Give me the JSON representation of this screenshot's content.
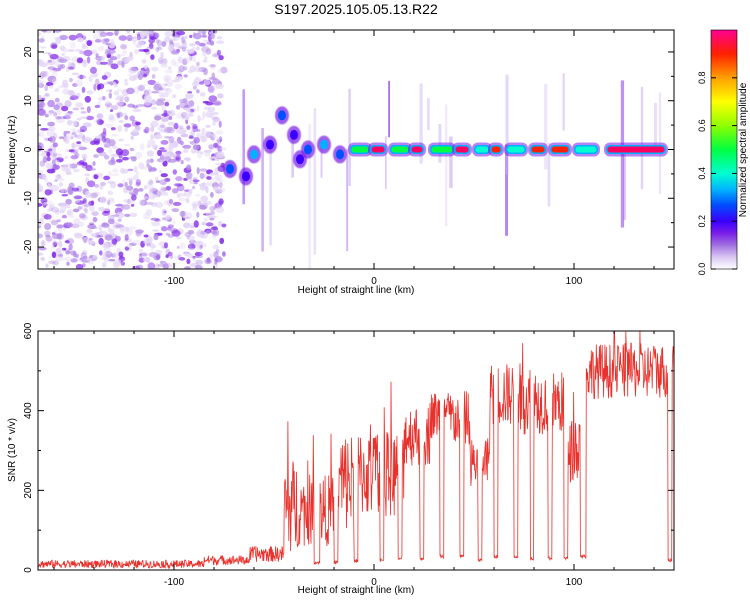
{
  "title": "S197.2025.105.05.13.R22",
  "colors": {
    "snr_line": "#e8312c",
    "axis": "#000000",
    "colormap": [
      "#ffffff",
      "#d9c6f2",
      "#a070e0",
      "#7a1ee8",
      "#3a00ff",
      "#0050ff",
      "#00b0ff",
      "#00ffd0",
      "#00ff40",
      "#90ff00",
      "#ffff00",
      "#ffa000",
      "#ff2000",
      "#ff0060",
      "#ff0090"
    ]
  },
  "chart_data": [
    {
      "type": "heatmap",
      "xlabel": "Height of straight line (km)",
      "ylabel": "Frequency (Hz)",
      "xlim": [
        -168,
        150
      ],
      "ylim": [
        -24.5,
        24.5
      ],
      "xticks": [
        -100,
        0,
        100
      ],
      "xtick_labels": [
        "-100",
        "0",
        "100"
      ],
      "yticks": [
        -20,
        -10,
        0,
        10,
        20
      ],
      "ytick_labels": [
        "-20",
        "-10",
        "0",
        "10",
        "20"
      ],
      "colorbar": {
        "label": "Normalized spectral amplitude",
        "range": [
          0,
          1
        ],
        "ticks": [
          0.0,
          0.2,
          0.4,
          0.6,
          0.8
        ],
        "tick_labels": [
          "0.0",
          "0.2",
          "0.4",
          "0.6",
          "0.8"
        ]
      },
      "features": {
        "noise_region_x": [
          -168,
          -75
        ],
        "carrier_frequency_hz": 0,
        "transition_blobs": [
          {
            "x": -72,
            "y": -4,
            "amp": 0.35
          },
          {
            "x": -64,
            "y": -5.5,
            "amp": 0.3
          },
          {
            "x": -60,
            "y": -1,
            "amp": 0.4
          },
          {
            "x": -52,
            "y": 1,
            "amp": 0.3
          },
          {
            "x": -46,
            "y": 7,
            "amp": 0.35
          },
          {
            "x": -40,
            "y": 3,
            "amp": 0.3
          },
          {
            "x": -37,
            "y": -2,
            "amp": 0.3
          },
          {
            "x": -33,
            "y": 0,
            "amp": 0.35
          },
          {
            "x": -25,
            "y": 1,
            "amp": 0.4
          },
          {
            "x": -17,
            "y": -1,
            "amp": 0.35
          }
        ],
        "carrier_segments": [
          {
            "x0": -12,
            "x1": -2,
            "amp": 0.55
          },
          {
            "x0": -2,
            "x1": 6,
            "amp": 0.9
          },
          {
            "x0": 8,
            "x1": 18,
            "amp": 0.55
          },
          {
            "x0": 18,
            "x1": 25,
            "amp": 0.9
          },
          {
            "x0": 28,
            "x1": 40,
            "amp": 0.55
          },
          {
            "x0": 40,
            "x1": 48,
            "amp": 0.9
          },
          {
            "x0": 50,
            "x1": 58,
            "amp": 0.5
          },
          {
            "x0": 58,
            "x1": 64,
            "amp": 0.85
          },
          {
            "x0": 66,
            "x1": 76,
            "amp": 0.5
          },
          {
            "x0": 78,
            "x1": 86,
            "amp": 0.85
          },
          {
            "x0": 88,
            "x1": 98,
            "amp": 0.85
          },
          {
            "x0": 100,
            "x1": 112,
            "amp": 0.5
          },
          {
            "x0": 116,
            "x1": 146,
            "amp": 0.95
          }
        ]
      }
    },
    {
      "type": "line",
      "xlabel": "Height of straight line (km)",
      "ylabel": "SNR (10 * v/v)",
      "xlim": [
        -168,
        150
      ],
      "ylim": [
        0,
        600
      ],
      "xticks": [
        -100,
        0,
        100
      ],
      "xtick_labels": [
        "-100",
        "0",
        "100"
      ],
      "yticks": [
        0,
        200,
        400,
        600
      ],
      "ytick_labels": [
        "0",
        "200",
        "400",
        "600"
      ],
      "series": [
        {
          "envelope": [
            {
              "x0": -168,
              "x1": -85,
              "level": 15,
              "spread": 10
            },
            {
              "x0": -85,
              "x1": -62,
              "level": 25,
              "spread": 12
            },
            {
              "x0": -62,
              "x1": -45,
              "level": 40,
              "spread": 20
            },
            {
              "x0": -45,
              "x1": -38,
              "level": 160,
              "spread": 120
            },
            {
              "x0": -38,
              "x1": -18,
              "level": 150,
              "spread": 90
            },
            {
              "x0": -18,
              "x1": -8,
              "level": 220,
              "spread": 130
            },
            {
              "x0": -8,
              "x1": 15,
              "level": 240,
              "spread": 110
            },
            {
              "x0": 15,
              "x1": 28,
              "level": 340,
              "spread": 80
            },
            {
              "x0": 28,
              "x1": 38,
              "level": 390,
              "spread": 60
            },
            {
              "x0": 38,
              "x1": 48,
              "level": 380,
              "spread": 70
            },
            {
              "x0": 48,
              "x1": 58,
              "level": 270,
              "spread": 60
            },
            {
              "x0": 58,
              "x1": 70,
              "level": 440,
              "spread": 80
            },
            {
              "x0": 70,
              "x1": 82,
              "level": 430,
              "spread": 90
            },
            {
              "x0": 82,
              "x1": 95,
              "level": 420,
              "spread": 80
            },
            {
              "x0": 95,
              "x1": 105,
              "level": 300,
              "spread": 80
            },
            {
              "x0": 105,
              "x1": 150,
              "level": 500,
              "spread": 70
            }
          ],
          "dropouts": [
            {
              "x0": -30,
              "x1": -27,
              "level": 15
            },
            {
              "x0": -20,
              "x1": -18,
              "level": 15
            },
            {
              "x0": -10,
              "x1": -8,
              "level": 20
            },
            {
              "x0": 3,
              "x1": 5,
              "level": 20
            },
            {
              "x0": 12,
              "x1": 14,
              "level": 25
            },
            {
              "x0": 23,
              "x1": 25,
              "level": 25
            },
            {
              "x0": 33,
              "x1": 35,
              "level": 30
            },
            {
              "x0": 43,
              "x1": 45,
              "level": 30
            },
            {
              "x0": 52,
              "x1": 54,
              "level": 20
            },
            {
              "x0": 60,
              "x1": 62,
              "level": 30
            },
            {
              "x0": 70,
              "x1": 72,
              "level": 30
            },
            {
              "x0": 78,
              "x1": 80,
              "level": 25
            },
            {
              "x0": 87,
              "x1": 89,
              "level": 25
            },
            {
              "x0": 95,
              "x1": 97,
              "level": 25
            },
            {
              "x0": 103,
              "x1": 106,
              "level": 30
            },
            {
              "x0": 147,
              "x1": 149,
              "level": 20
            }
          ]
        }
      ]
    }
  ]
}
